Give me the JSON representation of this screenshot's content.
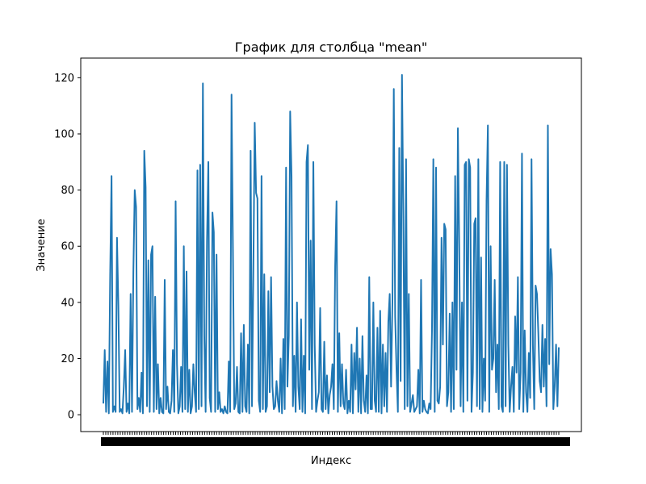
{
  "chart_data": {
    "type": "line",
    "title": "График для столбца \"mean\"",
    "xlabel": "Индекс",
    "ylabel": "Значение",
    "ylim": [
      -6,
      127
    ],
    "y_ticks": [
      0,
      20,
      40,
      60,
      80,
      100,
      120
    ],
    "x_tick_labels_note": "dense, overlapping index tick labels (illegible)",
    "grid": false,
    "series": [
      {
        "color": "#1f77b4",
        "values": [
          4,
          23,
          1,
          19,
          0.5,
          50,
          85,
          1,
          3,
          1,
          63,
          39,
          1,
          2,
          0.5,
          10,
          23,
          1,
          4,
          0.5,
          43,
          1,
          51,
          80,
          74,
          2,
          6,
          1,
          15,
          0.5,
          94,
          81,
          3,
          55,
          1,
          57,
          60,
          1,
          42,
          2,
          18,
          0.5,
          6,
          1,
          0.5,
          48,
          2,
          10,
          1,
          0.5,
          5,
          23,
          1,
          76,
          18,
          0.5,
          3,
          17,
          1,
          60,
          2,
          51,
          1,
          16,
          0.5,
          3,
          18,
          8,
          1,
          87,
          2,
          89,
          3,
          118,
          28,
          1,
          62,
          90,
          6,
          1,
          72,
          65,
          1,
          57,
          2,
          8,
          1,
          2,
          0.5,
          3,
          1,
          0.5,
          19,
          1,
          114,
          60,
          2,
          4,
          17,
          1,
          0.5,
          29,
          1,
          32,
          3,
          1,
          25,
          0.5,
          94,
          3,
          51,
          104,
          79,
          77,
          5,
          1,
          85,
          2,
          50,
          1,
          3,
          44,
          8,
          49,
          10,
          2,
          3,
          12,
          5,
          1,
          20,
          0.5,
          27,
          2,
          88,
          10,
          28,
          108,
          85,
          3,
          21,
          1,
          40,
          10,
          2,
          34,
          1,
          21,
          0.5,
          90,
          96,
          16,
          62,
          2,
          90,
          25,
          1,
          5,
          8,
          38,
          2,
          1,
          26,
          2,
          14,
          0.5,
          7,
          10,
          18,
          2,
          53,
          76,
          1,
          29,
          3,
          18,
          4,
          2,
          16,
          0.5,
          5,
          1,
          25,
          0.5,
          22,
          9,
          31,
          1,
          20,
          0.5,
          28,
          5,
          1,
          14,
          0.5,
          49,
          2,
          2,
          40,
          5,
          1,
          31,
          1,
          37,
          0.5,
          25,
          3,
          22,
          1,
          33,
          43,
          10,
          40,
          116,
          35,
          16,
          1,
          95,
          12,
          121,
          70,
          2,
          91,
          3,
          43,
          1,
          4,
          7,
          1,
          2,
          3,
          16,
          0.5,
          48,
          1,
          5,
          2,
          1,
          0.5,
          4,
          2,
          30,
          91,
          1,
          88,
          5,
          4,
          10,
          63,
          25,
          68,
          66,
          3,
          8,
          36,
          1,
          40,
          2,
          85,
          16,
          102,
          60,
          3,
          40,
          1,
          89,
          90,
          5,
          91,
          88,
          1,
          15,
          68,
          70,
          3,
          91,
          2,
          56,
          1,
          20,
          5,
          76,
          103,
          1,
          60,
          16,
          20,
          48,
          8,
          25,
          2,
          90,
          3,
          1,
          90,
          3,
          89,
          25,
          1,
          10,
          17,
          1,
          35,
          15,
          49,
          2,
          15,
          93,
          1,
          30,
          8,
          1,
          22,
          6,
          91,
          25,
          2,
          46,
          43,
          29,
          12,
          8,
          32,
          10,
          27,
          3,
          103,
          18,
          59,
          50,
          2,
          10,
          25,
          3,
          24
        ]
      }
    ]
  }
}
